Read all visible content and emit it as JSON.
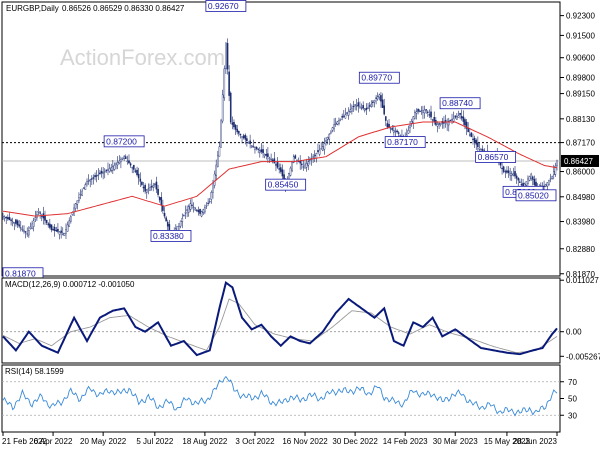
{
  "chart_data": [
    {
      "type": "candlestick",
      "symbol": "EURGBP,Daily",
      "ohlc_readout": "0.86526 0.86529 0.86330 0.86427",
      "watermark": "ActionForex.com",
      "y_ticks": [
        "0.92300",
        "0.91500",
        "0.90600",
        "0.89800",
        "0.89150",
        "0.88130",
        "0.87170",
        "0.86000",
        "0.84980",
        "0.83980",
        "0.82880",
        "0.81870"
      ],
      "ylim": [
        0.8178,
        0.9285
      ],
      "x_labels": [
        "21 Feb 2022",
        "6 Apr 2022",
        "20 May 2022",
        "5 Jul 2022",
        "18 Aug 2022",
        "3 Oct 2022",
        "16 Nov 2022",
        "30 Dec 2022",
        "14 Feb 2023",
        "30 Mar 2023",
        "15 May 2023",
        "28 Jun 2023"
      ],
      "current_price": "0.86427",
      "current_price_value": 0.86427,
      "level_line": "0.87170",
      "level_line_value": 0.8717,
      "annotations": [
        {
          "text": "0.92670",
          "value": 0.9267,
          "bar": 138
        },
        {
          "text": "0.89770",
          "value": 0.8977,
          "bar": 233
        },
        {
          "text": "0.88740",
          "value": 0.8874,
          "bar": 283
        },
        {
          "text": "0.87200",
          "value": 0.872,
          "bar": 75
        },
        {
          "text": "0.87170",
          "value": 0.8717,
          "bar": 249
        },
        {
          "text": "0.86570",
          "value": 0.8657,
          "bar": 305
        },
        {
          "text": "0.85450",
          "value": 0.8545,
          "bar": 175
        },
        {
          "text": "0.85160",
          "value": 0.8516,
          "bar": 322
        },
        {
          "text": "0.85020",
          "value": 0.8502,
          "bar": 330
        },
        {
          "text": "0.83380",
          "value": 0.8338,
          "bar": 104
        },
        {
          "text": "0.81870",
          "value": 0.8187,
          "bar": 0
        }
      ],
      "series": [
        {
          "name": "EURGBP",
          "values": [
            [
              0,
              0.842
            ],
            [
              8,
              0.839
            ],
            [
              15,
              0.835
            ],
            [
              22,
              0.844
            ],
            [
              30,
              0.8365
            ],
            [
              38,
              0.835
            ],
            [
              45,
              0.847
            ],
            [
              52,
              0.856
            ],
            [
              60,
              0.859
            ],
            [
              68,
              0.862
            ],
            [
              75,
              0.866
            ],
            [
              82,
              0.86
            ],
            [
              88,
              0.852
            ],
            [
              94,
              0.855
            ],
            [
              100,
              0.842
            ],
            [
              104,
              0.8338
            ],
            [
              110,
              0.84
            ],
            [
              116,
              0.847
            ],
            [
              122,
              0.843
            ],
            [
              128,
              0.848
            ],
            [
              134,
              0.87
            ],
            [
              138,
              0.912
            ],
            [
              141,
              0.88
            ],
            [
              145,
              0.876
            ],
            [
              150,
              0.873
            ],
            [
              155,
              0.87
            ],
            [
              160,
              0.868
            ],
            [
              166,
              0.865
            ],
            [
              172,
              0.86
            ],
            [
              175,
              0.8545
            ],
            [
              180,
              0.866
            ],
            [
              186,
              0.862
            ],
            [
              192,
              0.866
            ],
            [
              198,
              0.87
            ],
            [
              205,
              0.879
            ],
            [
              212,
              0.883
            ],
            [
              218,
              0.887
            ],
            [
              225,
              0.885
            ],
            [
              233,
              0.891
            ],
            [
              238,
              0.878
            ],
            [
              244,
              0.876
            ],
            [
              249,
              0.873
            ],
            [
              255,
              0.884
            ],
            [
              262,
              0.885
            ],
            [
              268,
              0.879
            ],
            [
              275,
              0.88
            ],
            [
              283,
              0.883
            ],
            [
              288,
              0.876
            ],
            [
              294,
              0.87
            ],
            [
              300,
              0.867
            ],
            [
              305,
              0.8665
            ],
            [
              310,
              0.86
            ],
            [
              316,
              0.859
            ],
            [
              322,
              0.854
            ],
            [
              327,
              0.859
            ],
            [
              330,
              0.8525
            ],
            [
              335,
              0.854
            ],
            [
              340,
              0.858
            ],
            [
              343,
              0.8643
            ]
          ]
        }
      ],
      "ma_line": {
        "color": "#e03030",
        "values": [
          [
            0,
            0.844
          ],
          [
            20,
            0.842
          ],
          [
            40,
            0.843
          ],
          [
            60,
            0.8465
          ],
          [
            80,
            0.85
          ],
          [
            100,
            0.846
          ],
          [
            120,
            0.85
          ],
          [
            140,
            0.861
          ],
          [
            160,
            0.864
          ],
          [
            180,
            0.864
          ],
          [
            200,
            0.866
          ],
          [
            220,
            0.874
          ],
          [
            240,
            0.878
          ],
          [
            260,
            0.88
          ],
          [
            280,
            0.88
          ],
          [
            300,
            0.874
          ],
          [
            320,
            0.867
          ],
          [
            335,
            0.8625
          ],
          [
            343,
            0.8615
          ]
        ]
      },
      "candle_color": "#1a2a6e",
      "colors": {
        "price_box_bg": "#000000",
        "annot_border": "#1a1aa8",
        "annot_text": "#1a1aa8",
        "ma": "#e03030"
      }
    },
    {
      "type": "line",
      "label": "MACD(12,26,9) 0.000712 -0.001050",
      "y_ticks": [
        "0.011027",
        "0.00",
        "-0.005267"
      ],
      "ylim": [
        -0.0067,
        0.0115
      ],
      "series": [
        {
          "name": "MACD",
          "color": "#0a1a7a",
          "values": [
            [
              0,
              -0.001
            ],
            [
              8,
              -0.004
            ],
            [
              16,
              0.0
            ],
            [
              24,
              -0.003
            ],
            [
              34,
              -0.0045
            ],
            [
              44,
              0.003
            ],
            [
              52,
              -0.002
            ],
            [
              60,
              0.003
            ],
            [
              68,
              0.0045
            ],
            [
              75,
              0.005
            ],
            [
              82,
              0.001
            ],
            [
              88,
              0.0
            ],
            [
              96,
              0.002
            ],
            [
              104,
              -0.003
            ],
            [
              112,
              -0.002
            ],
            [
              120,
              -0.005
            ],
            [
              128,
              -0.004
            ],
            [
              134,
              0.005
            ],
            [
              138,
              0.0105
            ],
            [
              142,
              0.0095
            ],
            [
              148,
              0.003
            ],
            [
              154,
              0.0005
            ],
            [
              160,
              0.0015
            ],
            [
              166,
              -0.001
            ],
            [
              172,
              -0.003
            ],
            [
              178,
              -0.001
            ],
            [
              184,
              -0.002
            ],
            [
              190,
              -0.0025
            ],
            [
              198,
              0.0
            ],
            [
              206,
              0.004
            ],
            [
              214,
              0.007
            ],
            [
              222,
              0.005
            ],
            [
              230,
              0.003
            ],
            [
              236,
              0.005
            ],
            [
              242,
              -0.002
            ],
            [
              248,
              -0.003
            ],
            [
              254,
              0.002
            ],
            [
              260,
              0.001
            ],
            [
              266,
              0.003
            ],
            [
              272,
              -0.001
            ],
            [
              280,
              0.0005
            ],
            [
              288,
              -0.0015
            ],
            [
              296,
              -0.0035
            ],
            [
              304,
              -0.004
            ],
            [
              312,
              -0.0045
            ],
            [
              320,
              -0.0048
            ],
            [
              328,
              -0.004
            ],
            [
              334,
              -0.0035
            ],
            [
              340,
              -0.0005
            ],
            [
              343,
              0.0007
            ]
          ]
        },
        {
          "name": "Signal",
          "color": "#9a9a9a",
          "values": [
            [
              0,
              -0.0008
            ],
            [
              10,
              -0.0025
            ],
            [
              20,
              -0.0015
            ],
            [
              30,
              -0.003
            ],
            [
              42,
              0.0
            ],
            [
              54,
              0.001
            ],
            [
              66,
              0.003
            ],
            [
              78,
              0.0035
            ],
            [
              90,
              0.001
            ],
            [
              102,
              -0.001
            ],
            [
              114,
              -0.0025
            ],
            [
              126,
              -0.004
            ],
            [
              134,
              0.001
            ],
            [
              140,
              0.007
            ],
            [
              146,
              0.006
            ],
            [
              156,
              0.0015
            ],
            [
              168,
              -0.0005
            ],
            [
              180,
              -0.0015
            ],
            [
              192,
              -0.002
            ],
            [
              204,
              0.001
            ],
            [
              216,
              0.0045
            ],
            [
              228,
              0.004
            ],
            [
              240,
              0.001
            ],
            [
              252,
              -0.0005
            ],
            [
              264,
              0.0015
            ],
            [
              276,
              -0.0002
            ],
            [
              290,
              -0.0015
            ],
            [
              304,
              -0.0032
            ],
            [
              318,
              -0.0045
            ],
            [
              330,
              -0.004
            ],
            [
              343,
              -0.001
            ]
          ]
        }
      ]
    },
    {
      "type": "line",
      "label": "RSI(14) 58.1599",
      "y_ticks": [
        "70",
        "50",
        "30"
      ],
      "ylim": [
        10,
        90
      ],
      "series": [
        {
          "name": "RSI",
          "color": "#3a8ad8",
          "values": [
            [
              0,
              48
            ],
            [
              6,
              40
            ],
            [
              12,
              55
            ],
            [
              18,
              44
            ],
            [
              24,
              52
            ],
            [
              30,
              40
            ],
            [
              36,
              46
            ],
            [
              42,
              58
            ],
            [
              48,
              50
            ],
            [
              54,
              62
            ],
            [
              60,
              54
            ],
            [
              66,
              60
            ],
            [
              72,
              56
            ],
            [
              78,
              62
            ],
            [
              84,
              45
            ],
            [
              90,
              52
            ],
            [
              96,
              40
            ],
            [
              102,
              46
            ],
            [
              108,
              38
            ],
            [
              114,
              50
            ],
            [
              120,
              44
            ],
            [
              126,
              48
            ],
            [
              132,
              62
            ],
            [
              136,
              74
            ],
            [
              139,
              76
            ],
            [
              143,
              60
            ],
            [
              148,
              54
            ],
            [
              154,
              50
            ],
            [
              160,
              56
            ],
            [
              166,
              46
            ],
            [
              172,
              44
            ],
            [
              178,
              52
            ],
            [
              184,
              48
            ],
            [
              190,
              54
            ],
            [
              196,
              50
            ],
            [
              202,
              56
            ],
            [
              208,
              60
            ],
            [
              214,
              58
            ],
            [
              220,
              62
            ],
            [
              226,
              56
            ],
            [
              232,
              64
            ],
            [
              236,
              52
            ],
            [
              242,
              46
            ],
            [
              248,
              44
            ],
            [
              254,
              60
            ],
            [
              260,
              54
            ],
            [
              266,
              56
            ],
            [
              272,
              46
            ],
            [
              278,
              54
            ],
            [
              284,
              56
            ],
            [
              290,
              44
            ],
            [
              296,
              40
            ],
            [
              302,
              42
            ],
            [
              308,
              34
            ],
            [
              314,
              36
            ],
            [
              320,
              33
            ],
            [
              326,
              38
            ],
            [
              330,
              32
            ],
            [
              336,
              42
            ],
            [
              340,
              54
            ],
            [
              343,
              58
            ]
          ]
        }
      ]
    }
  ]
}
